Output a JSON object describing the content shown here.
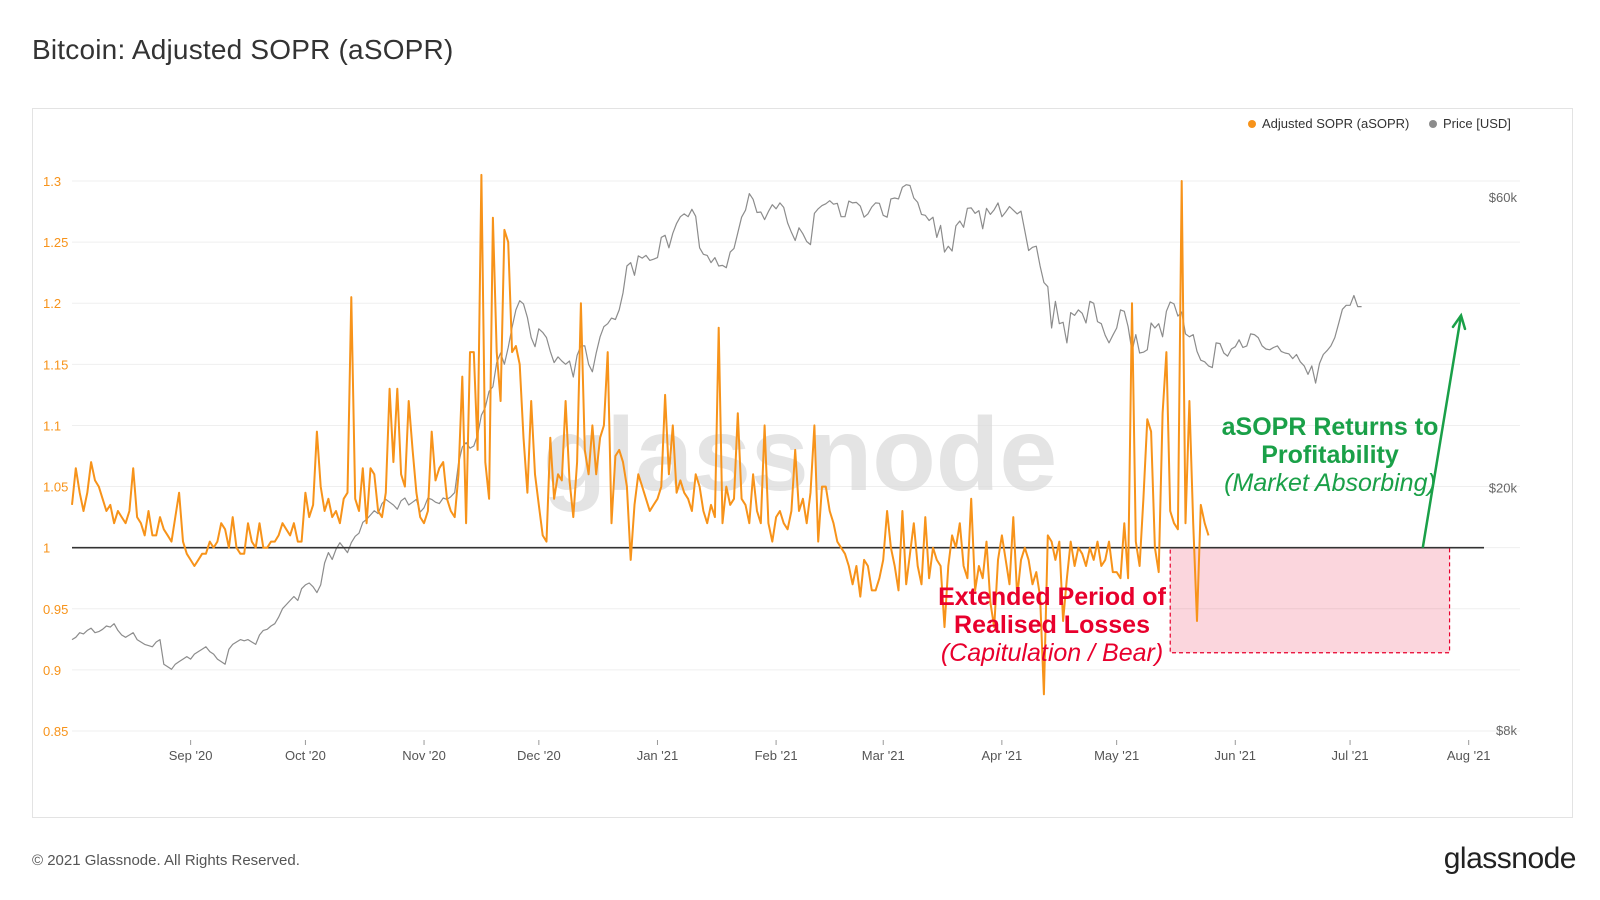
{
  "page": {
    "title": "Bitcoin: Adjusted SOPR (aSOPR)",
    "copyright": "© 2021 Glassnode. All Rights Reserved.",
    "logo_text": "glassnode",
    "watermark_text": "glassnode"
  },
  "colors": {
    "asopr": "#f7931a",
    "price": "#8c8c8c",
    "baseline": "#333333",
    "loss_box": "#e8002d",
    "profit": "#1aa048"
  },
  "annotations": {
    "profit_title_line1": "aSOPR Returns to",
    "profit_title_line2": "Profitability",
    "profit_sub": "(Market Absorbing)",
    "loss_title_line1": "Extended Period of",
    "loss_title_line2": "Realised Losses",
    "loss_sub": "(Capitulation / Bear)"
  },
  "chart_data": {
    "type": "line",
    "title": "Bitcoin: Adjusted SOPR (aSOPR)",
    "x_start": "2020-08-01",
    "x_end": "2021-08-05",
    "x_ticks": [
      "Sep '20",
      "Oct '20",
      "Nov '20",
      "Dec '20",
      "Jan '21",
      "Feb '21",
      "Mar '21",
      "Apr '21",
      "May '21",
      "Jun '21",
      "Jul '21",
      "Aug '21"
    ],
    "y_left": {
      "min": 0.85,
      "max": 1.3,
      "ticks": [
        "1.3",
        "1.25",
        "1.2",
        "1.15",
        "1.1",
        "1.05",
        "1",
        "0.95",
        "0.9",
        "0.85"
      ]
    },
    "y_right": {
      "scale": "log",
      "ticks": [
        "$60k",
        "$20k",
        "$8k"
      ]
    },
    "baseline_value": 1,
    "legend": {
      "placement": "top-right",
      "items": [
        "Adjusted SOPR (aSOPR)",
        "Price [USD]"
      ]
    },
    "series": [
      {
        "name": "Adjusted SOPR (aSOPR)",
        "axis": "left",
        "values": [
          1.035,
          1.065,
          1.045,
          1.03,
          1.045,
          1.07,
          1.055,
          1.05,
          1.04,
          1.03,
          1.035,
          1.02,
          1.03,
          1.025,
          1.02,
          1.03,
          1.065,
          1.025,
          1.02,
          1.01,
          1.03,
          1.01,
          1.01,
          1.025,
          1.015,
          1.01,
          1.005,
          1.025,
          1.045,
          1.005,
          0.995,
          0.99,
          0.985,
          0.99,
          0.995,
          0.995,
          1.005,
          1.0,
          1.005,
          1.02,
          1.015,
          1.0,
          1.025,
          1.0,
          0.995,
          0.995,
          1.02,
          1.005,
          1.0,
          1.02,
          1.0,
          1.0,
          1.005,
          1.005,
          1.01,
          1.02,
          1.015,
          1.01,
          1.02,
          1.005,
          1.005,
          1.045,
          1.025,
          1.035,
          1.095,
          1.05,
          1.03,
          1.04,
          1.025,
          1.03,
          1.02,
          1.04,
          1.045,
          1.205,
          1.04,
          1.03,
          1.065,
          1.02,
          1.065,
          1.06,
          1.03,
          1.025,
          1.045,
          1.13,
          1.07,
          1.13,
          1.06,
          1.05,
          1.12,
          1.08,
          1.045,
          1.025,
          1.02,
          1.03,
          1.095,
          1.055,
          1.065,
          1.07,
          1.04,
          1.03,
          1.025,
          1.06,
          1.14,
          1.02,
          1.16,
          1.16,
          1.08,
          1.305,
          1.07,
          1.04,
          1.27,
          1.16,
          1.12,
          1.26,
          1.25,
          1.16,
          1.165,
          1.15,
          1.09,
          1.045,
          1.12,
          1.06,
          1.035,
          1.01,
          1.005,
          1.09,
          1.04,
          1.06,
          1.055,
          1.12,
          1.055,
          1.025,
          1.07,
          1.2,
          1.08,
          1.06,
          1.1,
          1.06,
          1.09,
          1.1,
          1.16,
          1.02,
          1.075,
          1.08,
          1.07,
          1.05,
          0.99,
          1.035,
          1.06,
          1.05,
          1.04,
          1.03,
          1.035,
          1.04,
          1.05,
          1.125,
          1.06,
          1.1,
          1.045,
          1.055,
          1.045,
          1.04,
          1.03,
          1.06,
          1.05,
          1.03,
          1.02,
          1.035,
          1.025,
          1.18,
          1.02,
          1.05,
          1.035,
          1.04,
          1.11,
          1.04,
          1.035,
          1.02,
          1.06,
          1.03,
          1.02,
          1.1,
          1.02,
          1.005,
          1.025,
          1.03,
          1.02,
          1.015,
          1.03,
          1.08,
          1.03,
          1.04,
          1.02,
          1.045,
          1.1,
          1.005,
          1.05,
          1.05,
          1.03,
          1.02,
          1.005,
          1.0,
          0.995,
          0.985,
          0.97,
          0.985,
          0.96,
          0.99,
          0.985,
          0.965,
          0.965,
          0.975,
          0.99,
          1.03,
          1.0,
          0.985,
          0.965,
          1.03,
          0.97,
          0.995,
          1.02,
          0.985,
          0.97,
          1.025,
          0.975,
          1.0,
          0.99,
          0.985,
          0.935,
          0.985,
          1.01,
          1.0,
          1.02,
          0.985,
          0.975,
          1.04,
          0.965,
          0.985,
          0.975,
          1.005,
          0.955,
          0.935,
          0.99,
          1.01,
          0.99,
          0.97,
          1.025,
          0.96,
          0.99,
          1.0,
          0.99,
          0.97,
          0.98,
          0.96,
          0.88,
          1.01,
          1.005,
          0.99,
          1.005,
          0.94,
          0.975,
          1.005,
          0.985,
          1.0,
          0.995,
          0.985,
          1.0,
          0.99,
          1.005,
          0.985,
          0.99,
          1.005,
          0.98,
          0.98,
          0.975,
          1.02,
          0.975,
          1.2,
          1.005,
          0.985,
          1.04,
          1.105,
          1.095,
          1.0,
          0.98,
          1.11,
          1.16,
          1.03,
          1.02,
          1.015,
          1.3,
          1.02,
          1.12,
          1.02,
          0.94,
          1.035,
          1.02,
          1.01
        ]
      },
      {
        "name": "Price [USD]",
        "axis": "right",
        "values": [
          11300,
          11400,
          11600,
          11550,
          11700,
          11800,
          11600,
          11650,
          11750,
          11900,
          11850,
          12000,
          11700,
          11500,
          11400,
          11500,
          11600,
          11300,
          11200,
          11100,
          11050,
          11000,
          11200,
          11300,
          10300,
          10200,
          10100,
          10300,
          10400,
          10500,
          10600,
          10500,
          10700,
          10800,
          10900,
          11000,
          10800,
          10700,
          10500,
          10400,
          10300,
          10900,
          11100,
          11200,
          11300,
          11250,
          11300,
          11200,
          11100,
          11500,
          11700,
          11750,
          11900,
          12000,
          12300,
          12700,
          12900,
          13100,
          13300,
          13100,
          13700,
          13900,
          14000,
          13800,
          13500,
          13900,
          15100,
          15700,
          15300,
          15900,
          16300,
          16000,
          15700,
          16300,
          16700,
          16900,
          17600,
          17800,
          18100,
          18400,
          18200,
          18900,
          19200,
          19000,
          18800,
          18500,
          19100,
          19300,
          18800,
          19000,
          19200,
          18300,
          18600,
          19300,
          19200,
          19000,
          18900,
          19300,
          19200,
          19400,
          19700,
          22000,
          23400,
          23800,
          23300,
          23500,
          24500,
          26400,
          27200,
          28900,
          29400,
          32200,
          33400,
          32000,
          34100,
          36800,
          39300,
          40700,
          40200,
          38200,
          35400,
          34200,
          36600,
          36100,
          35400,
          33600,
          32200,
          32900,
          32400,
          32000,
          32400,
          30500,
          33100,
          34300,
          34300,
          32000,
          31100,
          33400,
          35500,
          36900,
          37300,
          38100,
          37900,
          39300,
          41900,
          46400,
          47000,
          44800,
          48200,
          47800,
          48300,
          47400,
          47600,
          47900,
          51700,
          52100,
          49700,
          52500,
          54500,
          55900,
          56500,
          55900,
          57500,
          56000,
          49700,
          48500,
          48300,
          47000,
          47900,
          46400,
          46500,
          46100,
          48900,
          49600,
          52600,
          55800,
          57300,
          61000,
          59700,
          56800,
          56900,
          55300,
          57000,
          58500,
          57600,
          58900,
          57900,
          54600,
          52700,
          51100,
          53600,
          52400,
          50900,
          50300,
          56600,
          57600,
          58300,
          58700,
          59400,
          58600,
          58800,
          55900,
          55900,
          59300,
          58900,
          59000,
          58200,
          55800,
          56500,
          58000,
          58900,
          58800,
          56200,
          55800,
          59800,
          60000,
          59800,
          62500,
          63100,
          62900,
          60000,
          59000,
          56400,
          56200,
          55100,
          55800,
          51700,
          54100,
          48900,
          50000,
          49100,
          54000,
          55000,
          53700,
          57700,
          57800,
          56600,
          57200,
          53400,
          57700,
          56400,
          57400,
          58900,
          55900,
          56900,
          58100,
          57300,
          56500,
          57100,
          53000,
          49200,
          49800,
          50000,
          46400,
          43600,
          42900,
          36700,
          40600,
          37300,
          37500,
          34700,
          38900,
          38500,
          39300,
          38800,
          37400,
          40600,
          40300,
          37600,
          37300,
          35700,
          34700,
          35700,
          36700,
          39300,
          39100,
          36900,
          33600,
          35800,
          33400,
          33500,
          33800,
          37400,
          36700,
          37300,
          35500,
          39100,
          40500,
          40200,
          38400,
          39000,
          35900,
          35500,
          35800,
          33600,
          32500,
          32300,
          31800,
          31600,
          34700,
          34600,
          33400,
          33000,
          33900,
          34200,
          35100,
          34100,
          34300,
          35900,
          35800,
          35400,
          34300,
          33900,
          33800,
          34100,
          34300,
          33600,
          33400,
          33300,
          32700,
          33200,
          32300,
          31800,
          30800,
          31800,
          29800,
          32100,
          33200,
          33700,
          34300,
          35400,
          37300,
          39400,
          40000,
          40000,
          41500,
          39800,
          39800
        ]
      }
    ]
  }
}
